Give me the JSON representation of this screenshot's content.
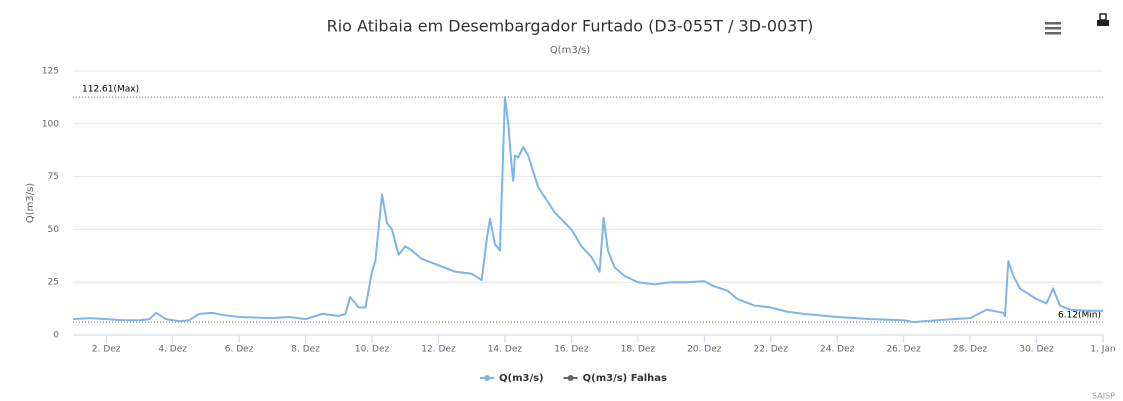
{
  "chart_data": {
    "type": "line",
    "title": "Rio Atibaia em Desembargador Furtado (D3-055T / 3D-003T)",
    "subtitle": "Q(m3/s)",
    "y_label": "Q(m3/s)",
    "credits": "SAISP",
    "x": [
      1,
      1.5,
      2,
      2.5,
      3,
      3.3,
      3.5,
      3.8,
      4.2,
      4.5,
      4.8,
      5.2,
      5.5,
      6,
      7,
      7.5,
      8,
      8.5,
      9,
      9.2,
      9.34,
      9.6,
      9.8,
      10,
      10.1,
      10.3,
      10.45,
      10.6,
      10.8,
      11,
      11.2,
      11.5,
      12,
      12.5,
      13,
      13.3,
      13.45,
      13.55,
      13.7,
      13.85,
      14,
      14.1,
      14.2,
      14.25,
      14.3,
      14.4,
      14.55,
      14.7,
      15,
      15.5,
      16,
      16.3,
      16.6,
      16.85,
      16.97,
      17.1,
      17.3,
      17.6,
      18,
      18.5,
      19,
      19.5,
      20,
      20.3,
      20.7,
      21,
      21.5,
      22,
      22.5,
      23,
      24,
      25,
      26,
      26.3,
      26.6,
      27,
      27.5,
      28,
      28.5,
      29,
      29.05,
      29.15,
      29.3,
      29.5,
      30,
      30.3,
      30.5,
      30.7,
      31,
      31.5,
      32
    ],
    "series": [
      {
        "name": "Q(m3/s)",
        "color": "#7cb5ec",
        "values": [
          7.5,
          8,
          7.5,
          7,
          7,
          7.5,
          10.5,
          7.5,
          6.5,
          7,
          10,
          10.5,
          9.5,
          8.5,
          8,
          8.5,
          7.5,
          10,
          9,
          10,
          18,
          13,
          13,
          30,
          35,
          66.6,
          53,
          50,
          38,
          42,
          40,
          36,
          33,
          30,
          29,
          26,
          45,
          55,
          43,
          40,
          112.61,
          100,
          80,
          73,
          85,
          84,
          89,
          85,
          70,
          58,
          50,
          42,
          37,
          30,
          55.5,
          40,
          32,
          28,
          25,
          24,
          25,
          25,
          25.5,
          23,
          21,
          17,
          14,
          13,
          11,
          10,
          8.5,
          7.5,
          7,
          6.12,
          6.5,
          7,
          7.5,
          8,
          12,
          10.5,
          9,
          35,
          28,
          22,
          17,
          15,
          22,
          14,
          12,
          11.5,
          11.5
        ]
      },
      {
        "name": "Q(m3/s) Falhas",
        "color": "#666666",
        "values": [
          null,
          null,
          null,
          null,
          null,
          null,
          null,
          null,
          null,
          null,
          null,
          null,
          null,
          null,
          null,
          null,
          null,
          null,
          null,
          null,
          null,
          null,
          null,
          null,
          null,
          null,
          null,
          null,
          null,
          null,
          null,
          null,
          null,
          null,
          null,
          null,
          null,
          null,
          null,
          null,
          null,
          null,
          null,
          null,
          null,
          null,
          null,
          null,
          null,
          null,
          null,
          null,
          null,
          null,
          null,
          null,
          null,
          null,
          null,
          null,
          null,
          null,
          null,
          null,
          null,
          null,
          null,
          null,
          null,
          null,
          null,
          null,
          null,
          null,
          null,
          null,
          null,
          null,
          null,
          null,
          null,
          null,
          null,
          null,
          null,
          null,
          null,
          null,
          null,
          null,
          null
        ]
      }
    ],
    "xlim": [
      1,
      32
    ],
    "xticks": [
      {
        "value": 2,
        "label": "2. Dez"
      },
      {
        "value": 4,
        "label": "4. Dez"
      },
      {
        "value": 6,
        "label": "6. Dez"
      },
      {
        "value": 8,
        "label": "8. Dez"
      },
      {
        "value": 10,
        "label": "10. Dez"
      },
      {
        "value": 12,
        "label": "12. Dez"
      },
      {
        "value": 14,
        "label": "14. Dez"
      },
      {
        "value": 16,
        "label": "16. Dez"
      },
      {
        "value": 18,
        "label": "18. Dez"
      },
      {
        "value": 20,
        "label": "20. Dez"
      },
      {
        "value": 22,
        "label": "22. Dez"
      },
      {
        "value": 24,
        "label": "24. Dez"
      },
      {
        "value": 26,
        "label": "26. Dez"
      },
      {
        "value": 28,
        "label": "28. Dez"
      },
      {
        "value": 30,
        "label": "30. Dez"
      },
      {
        "value": 32,
        "label": "1. Jan"
      }
    ],
    "ylim": [
      0,
      125
    ],
    "yticks": [
      0,
      25,
      50,
      75,
      100,
      125
    ],
    "grid": true,
    "plot_lines": [
      {
        "value": 112.61,
        "label": "112.61(Max)"
      },
      {
        "value": 6.12,
        "label": "6.12(Min)"
      }
    ]
  }
}
